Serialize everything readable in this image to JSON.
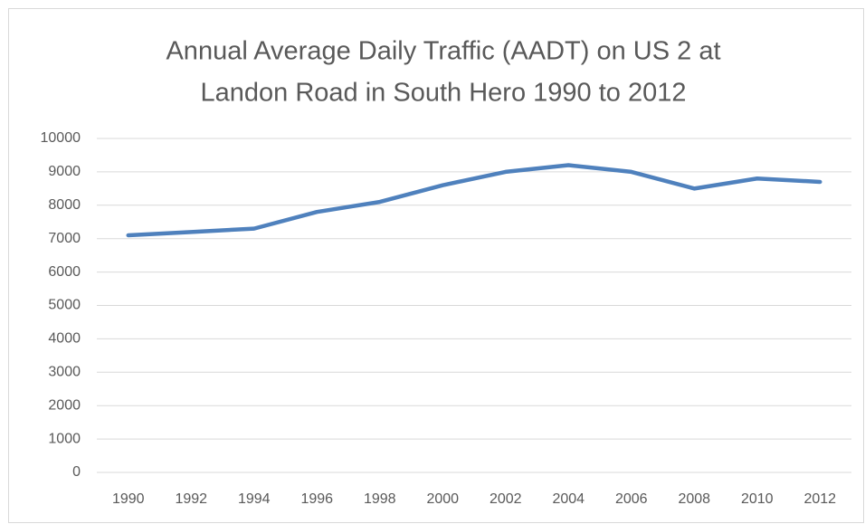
{
  "chart_data": {
    "type": "line",
    "title": [
      "Annual Average Daily Traffic (AADT) on US 2 at",
      "Landon Road in South Hero 1990 to 2012"
    ],
    "categories": [
      "1990",
      "1992",
      "1994",
      "1996",
      "1998",
      "2000",
      "2002",
      "2004",
      "2006",
      "2008",
      "2010",
      "2012"
    ],
    "series": [
      {
        "color": "#4f81bd",
        "values": [
          7100,
          7200,
          7300,
          7800,
          8100,
          8600,
          9000,
          9200,
          9000,
          8500,
          8800,
          8700
        ]
      }
    ],
    "ylim": [
      0,
      10000
    ],
    "yticks": [
      0,
      1000,
      2000,
      3000,
      4000,
      5000,
      6000,
      7000,
      8000,
      9000,
      10000
    ],
    "grid": true
  }
}
